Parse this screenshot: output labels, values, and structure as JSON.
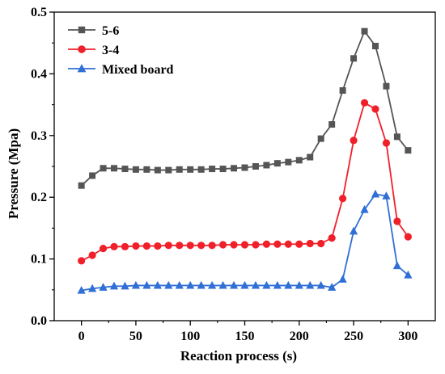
{
  "chart_data": {
    "type": "line",
    "title": "",
    "xlabel": "Reaction process (s)",
    "ylabel": "Pressure (Mpa)",
    "xlim": [
      -25,
      325
    ],
    "ylim": [
      0,
      0.5
    ],
    "x_ticks": [
      "0",
      "50",
      "100",
      "150",
      "200",
      "250",
      "300"
    ],
    "y_ticks": [
      "0.0",
      "0.1",
      "0.2",
      "0.3",
      "0.4",
      "0.5"
    ],
    "grid": false,
    "legend_position": "top-left",
    "series": [
      {
        "name": "5-6",
        "color": "#555555",
        "marker": "square",
        "x": [
          0,
          10,
          20,
          30,
          40,
          50,
          60,
          70,
          80,
          90,
          100,
          110,
          120,
          130,
          140,
          150,
          160,
          170,
          180,
          190,
          200,
          210,
          220,
          230,
          240,
          250,
          260,
          270,
          280,
          290,
          300
        ],
        "y": [
          0.219,
          0.235,
          0.247,
          0.247,
          0.246,
          0.245,
          0.245,
          0.244,
          0.244,
          0.245,
          0.245,
          0.245,
          0.246,
          0.246,
          0.247,
          0.248,
          0.25,
          0.252,
          0.255,
          0.257,
          0.26,
          0.265,
          0.295,
          0.318,
          0.373,
          0.425,
          0.469,
          0.445,
          0.38,
          0.298,
          0.276
        ]
      },
      {
        "name": "3-4",
        "color": "#f0202a",
        "marker": "circle",
        "x": [
          0,
          10,
          20,
          30,
          40,
          50,
          60,
          70,
          80,
          90,
          100,
          110,
          120,
          130,
          140,
          150,
          160,
          170,
          180,
          190,
          200,
          210,
          220,
          230,
          240,
          250,
          260,
          270,
          280,
          290,
          300
        ],
        "y": [
          0.097,
          0.106,
          0.117,
          0.12,
          0.12,
          0.121,
          0.121,
          0.121,
          0.122,
          0.122,
          0.122,
          0.122,
          0.122,
          0.123,
          0.123,
          0.123,
          0.123,
          0.124,
          0.124,
          0.124,
          0.124,
          0.125,
          0.125,
          0.134,
          0.198,
          0.292,
          0.353,
          0.343,
          0.288,
          0.161,
          0.136
        ]
      },
      {
        "name": "Mixed board",
        "color": "#2f6fd6",
        "marker": "triangle",
        "x": [
          0,
          10,
          20,
          30,
          40,
          50,
          60,
          70,
          80,
          90,
          100,
          110,
          120,
          130,
          140,
          150,
          160,
          170,
          180,
          190,
          200,
          210,
          220,
          230,
          240,
          250,
          260,
          270,
          280,
          290,
          300
        ],
        "y": [
          0.049,
          0.052,
          0.054,
          0.056,
          0.056,
          0.057,
          0.057,
          0.057,
          0.057,
          0.057,
          0.057,
          0.057,
          0.057,
          0.057,
          0.057,
          0.057,
          0.057,
          0.057,
          0.057,
          0.057,
          0.057,
          0.057,
          0.057,
          0.054,
          0.067,
          0.145,
          0.18,
          0.205,
          0.202,
          0.089,
          0.074
        ]
      }
    ]
  }
}
